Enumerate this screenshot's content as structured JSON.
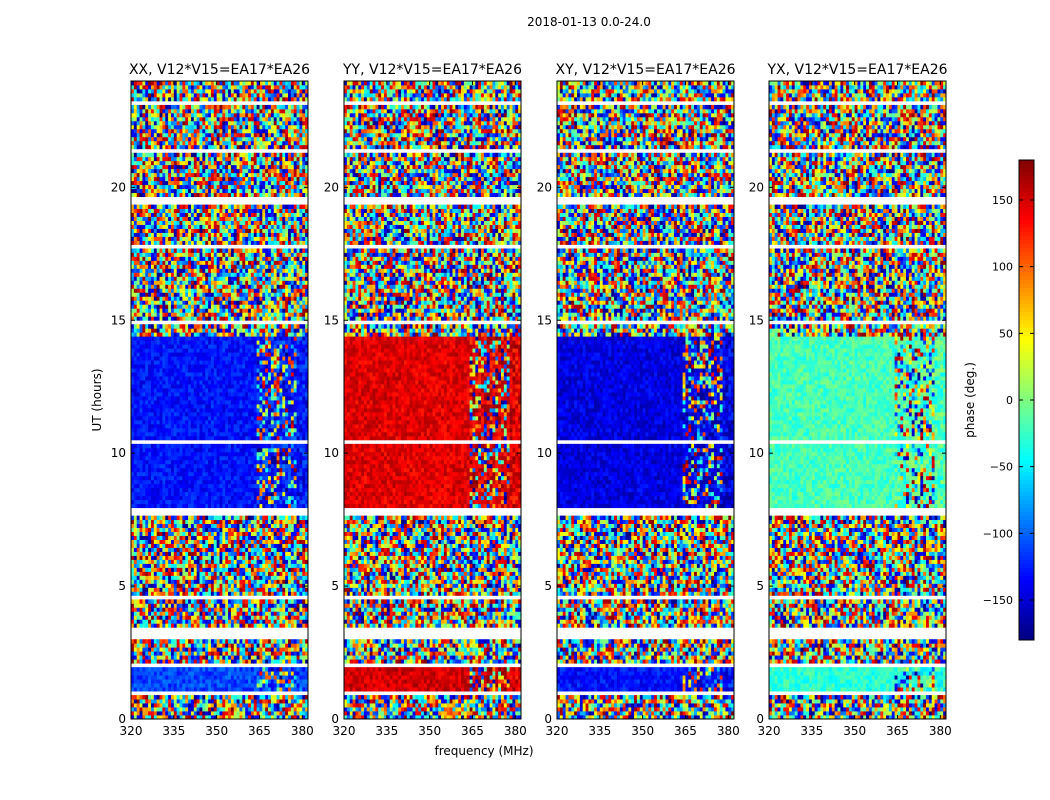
{
  "figure": {
    "suptitle": "2018-01-13 0.0-24.0",
    "xlabel": "frequency (MHz)",
    "ylabel": "UT (hours)"
  },
  "colorbar": {
    "label": "phase (deg.)",
    "colormap": "jet",
    "range": [
      -180,
      180
    ],
    "ticks": [
      150,
      100,
      50,
      0,
      -50,
      -100,
      -150
    ],
    "tick_labels": [
      "150",
      "100",
      "50",
      "0",
      "−50",
      "−100",
      "−150"
    ]
  },
  "chart_data": [
    {
      "type": "heatmap",
      "title": "XX, V12*V15=EA17*EA26",
      "xlim": [
        320,
        382
      ],
      "ylim": [
        0,
        24
      ],
      "xticks": [
        320,
        335,
        350,
        365,
        380
      ],
      "yticks": [
        0,
        5,
        10,
        15,
        20
      ],
      "value": "phase (deg.)",
      "coherent_bands": [
        {
          "ut": [
            7.9,
            14.4
          ],
          "phase": -130
        },
        {
          "ut": [
            1.0,
            2.1
          ],
          "phase": -110
        }
      ]
    },
    {
      "type": "heatmap",
      "title": "YY, V12*V15=EA17*EA26",
      "xlim": [
        320,
        382
      ],
      "ylim": [
        0,
        24
      ],
      "xticks": [
        320,
        335,
        350,
        365,
        380
      ],
      "yticks": [
        0,
        5,
        10,
        15,
        20
      ],
      "value": "phase (deg.)",
      "coherent_bands": [
        {
          "ut": [
            7.9,
            14.4
          ],
          "phase": 145
        },
        {
          "ut": [
            1.0,
            2.1
          ],
          "phase": 150
        }
      ]
    },
    {
      "type": "heatmap",
      "title": "XY, V12*V15=EA17*EA26",
      "xlim": [
        320,
        382
      ],
      "ylim": [
        0,
        24
      ],
      "xticks": [
        320,
        335,
        350,
        365,
        380
      ],
      "yticks": [
        0,
        5,
        10,
        15,
        20
      ],
      "value": "phase (deg.)",
      "coherent_bands": [
        {
          "ut": [
            7.9,
            14.4
          ],
          "phase": -145
        },
        {
          "ut": [
            1.0,
            2.1
          ],
          "phase": -130
        }
      ]
    },
    {
      "type": "heatmap",
      "title": "YX, V12*V15=EA17*EA26",
      "xlim": [
        320,
        382
      ],
      "ylim": [
        0,
        24
      ],
      "xticks": [
        320,
        335,
        350,
        365,
        380
      ],
      "yticks": [
        0,
        5,
        10,
        15,
        20
      ],
      "value": "phase (deg.)",
      "coherent_bands": [
        {
          "ut": [
            7.9,
            14.4
          ],
          "phase": -20
        },
        {
          "ut": [
            1.0,
            2.1
          ],
          "phase": -30
        }
      ]
    }
  ]
}
